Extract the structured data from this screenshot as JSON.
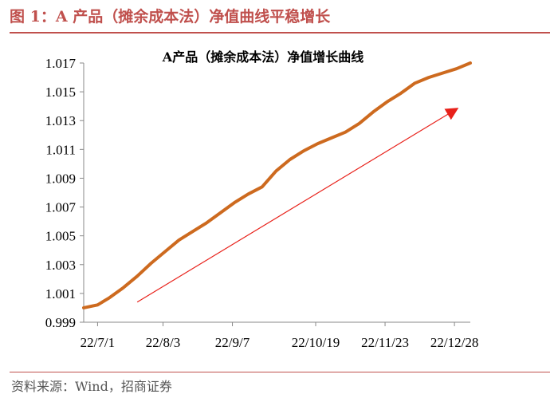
{
  "figure": {
    "title": "图 1：A 产品（摊余成本法）净值曲线平稳增长",
    "source": "资料来源：Wind，招商证券"
  },
  "colors": {
    "accent": "#c0504d",
    "series": "#cd6a1f",
    "arrow": "#e8211a"
  },
  "chart_data": {
    "type": "line",
    "title": "A产品（摊余成本法）净值增长曲线",
    "xlabel": "",
    "ylabel": "",
    "ylim": [
      0.999,
      1.017
    ],
    "yticks": [
      "0.999",
      "1.001",
      "1.003",
      "1.005",
      "1.007",
      "1.009",
      "1.011",
      "1.013",
      "1.015",
      "1.017"
    ],
    "xlim": [
      "2022-06-24",
      "2023-01-05"
    ],
    "xticks": [
      {
        "date": "2022-07-01",
        "label": "22/7/1"
      },
      {
        "date": "2022-08-03",
        "label": "22/8/3"
      },
      {
        "date": "2022-09-07",
        "label": "22/9/7"
      },
      {
        "date": "2022-10-19",
        "label": "22/10/19"
      },
      {
        "date": "2022-11-23",
        "label": "22/11/23"
      },
      {
        "date": "2022-12-28",
        "label": "22/12/28"
      }
    ],
    "grid": false,
    "legend": "none",
    "series": [
      {
        "x": [
          "2022-06-24",
          "2022-07-01",
          "2022-07-07",
          "2022-07-14",
          "2022-07-21",
          "2022-07-28",
          "2022-08-04",
          "2022-08-11",
          "2022-08-18",
          "2022-08-25",
          "2022-09-01",
          "2022-09-08",
          "2022-09-15",
          "2022-09-22",
          "2022-09-29",
          "2022-10-06",
          "2022-10-13",
          "2022-10-20",
          "2022-10-27",
          "2022-11-03",
          "2022-11-10",
          "2022-11-17",
          "2022-11-24",
          "2022-12-01",
          "2022-12-08",
          "2022-12-15",
          "2022-12-22",
          "2022-12-29",
          "2023-01-05"
        ],
        "y": [
          1.0,
          1.0002,
          1.0007,
          1.0014,
          1.0022,
          1.0031,
          1.0039,
          1.0047,
          1.0053,
          1.0059,
          1.0066,
          1.0073,
          1.0079,
          1.0084,
          1.0095,
          1.0103,
          1.0109,
          1.0114,
          1.0118,
          1.0122,
          1.0128,
          1.0136,
          1.0143,
          1.0149,
          1.0156,
          1.016,
          1.0163,
          1.0166,
          1.017
        ]
      }
    ],
    "annotations": [
      {
        "type": "arrow",
        "from": {
          "x": "2022-07-21",
          "y": 1.0004
        },
        "to": {
          "x": "2022-12-29",
          "y": 1.0138
        }
      }
    ]
  }
}
